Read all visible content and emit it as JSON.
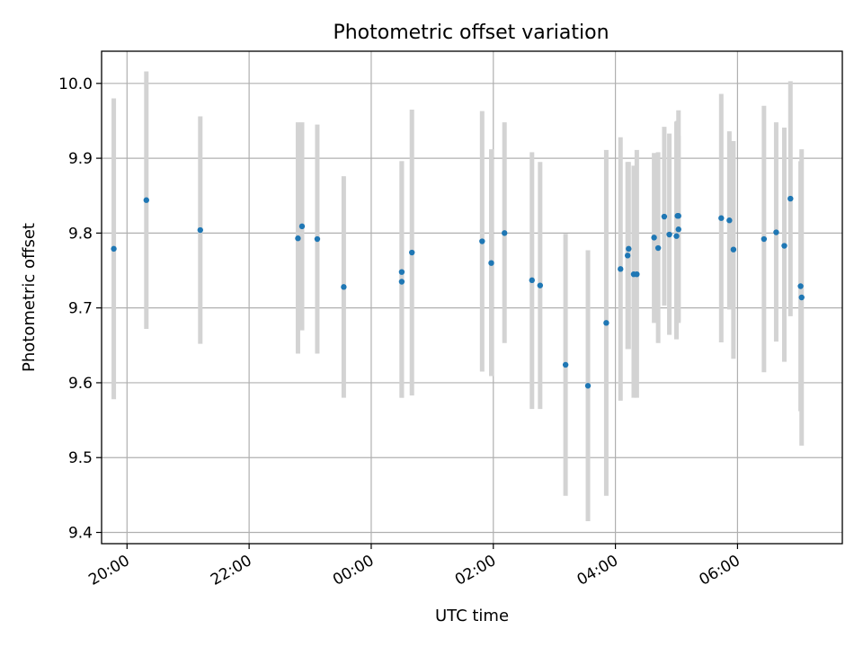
{
  "chart_data": {
    "type": "scatter",
    "title": "Photometric offset variation",
    "xlabel": "UTC time",
    "ylabel": "Photometric offset",
    "x_axis": {
      "kind": "time",
      "range": [
        "19:35",
        "07:43"
      ],
      "ticks": [
        "20:00",
        "22:00",
        "00:00",
        "02:00",
        "04:00",
        "06:00"
      ],
      "tick_rotation_deg": 30
    },
    "y_axis": {
      "range": [
        9.385,
        10.043
      ],
      "ticks": [
        "9.4",
        "9.5",
        "9.6",
        "9.7",
        "9.8",
        "9.9",
        "10.0"
      ]
    },
    "grid": true,
    "colors": {
      "point": "#1f77b4",
      "errorbar": "#d3d3d3"
    },
    "points": [
      {
        "time": "19:47",
        "y": 9.779,
        "low": 9.578,
        "high": 9.98
      },
      {
        "time": "20:19",
        "y": 9.844,
        "low": 9.672,
        "high": 10.016
      },
      {
        "time": "21:12",
        "y": 9.804,
        "low": 9.652,
        "high": 9.956
      },
      {
        "time": "22:48",
        "y": 9.793,
        "low": 9.639,
        "high": 9.948
      },
      {
        "time": "22:52",
        "y": 9.809,
        "low": 9.67,
        "high": 9.948
      },
      {
        "time": "23:07",
        "y": 9.792,
        "low": 9.639,
        "high": 9.945
      },
      {
        "time": "23:33",
        "y": 9.728,
        "low": 9.58,
        "high": 9.876
      },
      {
        "time": "00:30",
        "y": 9.748,
        "low": 9.58,
        "high": 9.896
      },
      {
        "time": "00:30",
        "y": 9.735,
        "low": 9.58,
        "high": 9.896
      },
      {
        "time": "00:40",
        "y": 9.774,
        "low": 9.583,
        "high": 9.965
      },
      {
        "time": "01:49",
        "y": 9.789,
        "low": 9.615,
        "high": 9.963
      },
      {
        "time": "01:58",
        "y": 9.76,
        "low": 9.609,
        "high": 9.912
      },
      {
        "time": "02:11",
        "y": 9.8,
        "low": 9.653,
        "high": 9.948
      },
      {
        "time": "02:38",
        "y": 9.737,
        "low": 9.565,
        "high": 9.908
      },
      {
        "time": "02:46",
        "y": 9.73,
        "low": 9.565,
        "high": 9.895
      },
      {
        "time": "03:11",
        "y": 9.624,
        "low": 9.449,
        "high": 9.799
      },
      {
        "time": "03:33",
        "y": 9.596,
        "low": 9.415,
        "high": 9.777
      },
      {
        "time": "03:51",
        "y": 9.68,
        "low": 9.449,
        "high": 9.911
      },
      {
        "time": "04:05",
        "y": 9.752,
        "low": 9.576,
        "high": 9.928
      },
      {
        "time": "04:12",
        "y": 9.77,
        "low": 9.645,
        "high": 9.895
      },
      {
        "time": "04:13",
        "y": 9.779,
        "low": 9.645,
        "high": 9.895
      },
      {
        "time": "04:18",
        "y": 9.745,
        "low": 9.58,
        "high": 9.89
      },
      {
        "time": "04:21",
        "y": 9.745,
        "low": 9.58,
        "high": 9.911
      },
      {
        "time": "04:38",
        "y": 9.794,
        "low": 9.68,
        "high": 9.907
      },
      {
        "time": "04:42",
        "y": 9.78,
        "low": 9.653,
        "high": 9.908
      },
      {
        "time": "04:48",
        "y": 9.822,
        "low": 9.703,
        "high": 9.942
      },
      {
        "time": "04:53",
        "y": 9.798,
        "low": 9.664,
        "high": 9.933
      },
      {
        "time": "05:00",
        "y": 9.796,
        "low": 9.658,
        "high": 9.949
      },
      {
        "time": "05:01",
        "y": 9.823,
        "low": 9.695,
        "high": 9.95
      },
      {
        "time": "05:02",
        "y": 9.823,
        "low": 9.682,
        "high": 9.964
      },
      {
        "time": "05:02",
        "y": 9.805,
        "low": 9.68,
        "high": 9.93
      },
      {
        "time": "05:44",
        "y": 9.82,
        "low": 9.654,
        "high": 9.986
      },
      {
        "time": "05:52",
        "y": 9.817,
        "low": 9.698,
        "high": 9.936
      },
      {
        "time": "05:56",
        "y": 9.778,
        "low": 9.632,
        "high": 9.923
      },
      {
        "time": "06:26",
        "y": 9.792,
        "low": 9.614,
        "high": 9.97
      },
      {
        "time": "06:38",
        "y": 9.801,
        "low": 9.655,
        "high": 9.948
      },
      {
        "time": "06:46",
        "y": 9.783,
        "low": 9.628,
        "high": 9.941
      },
      {
        "time": "06:52",
        "y": 9.846,
        "low": 9.689,
        "high": 10.003
      },
      {
        "time": "07:02",
        "y": 9.729,
        "low": 9.562,
        "high": 9.896
      },
      {
        "time": "07:03",
        "y": 9.714,
        "low": 9.516,
        "high": 9.912
      }
    ]
  }
}
